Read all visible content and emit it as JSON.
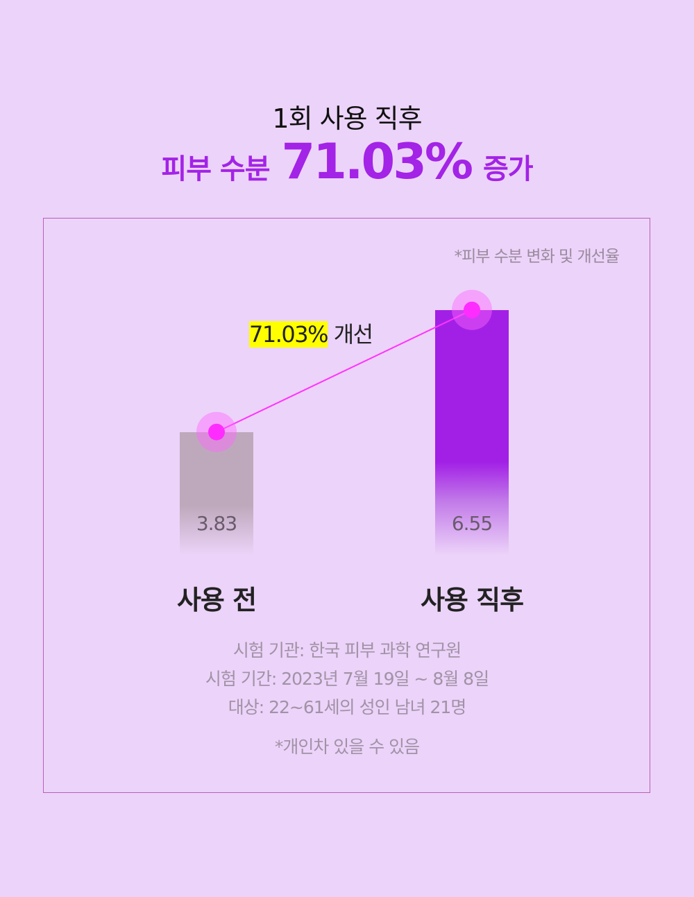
{
  "header": {
    "subtitle": "1회 사용 직후",
    "headline_prefix": "피부 수분",
    "headline_value": "71.03%",
    "headline_suffix": "증가"
  },
  "colors": {
    "accent": "#a323e6",
    "highlight": "#ffff00",
    "line": "#ff33ff",
    "before_bar": "#bea9bc",
    "after_bar": "#a220e6"
  },
  "chart_data": {
    "type": "bar",
    "title": "*피부 수분 변화 및 개선율",
    "categories": [
      "사용 전",
      "사용 직후"
    ],
    "values": [
      3.83,
      6.55
    ],
    "value_labels": [
      "3.83",
      "6.55"
    ],
    "annotation": {
      "value": "71.03%",
      "text": "개선"
    },
    "connector_line": true,
    "grid": false
  },
  "info": {
    "lines": [
      "시험 기관: 한국 피부 과학 연구원",
      "시험 기간: 2023년 7월 19일 ~ 8월 8일",
      "대상: 22~61세의 성인 남녀 21명"
    ],
    "disclaimer": "*개인차 있을 수 있음"
  }
}
